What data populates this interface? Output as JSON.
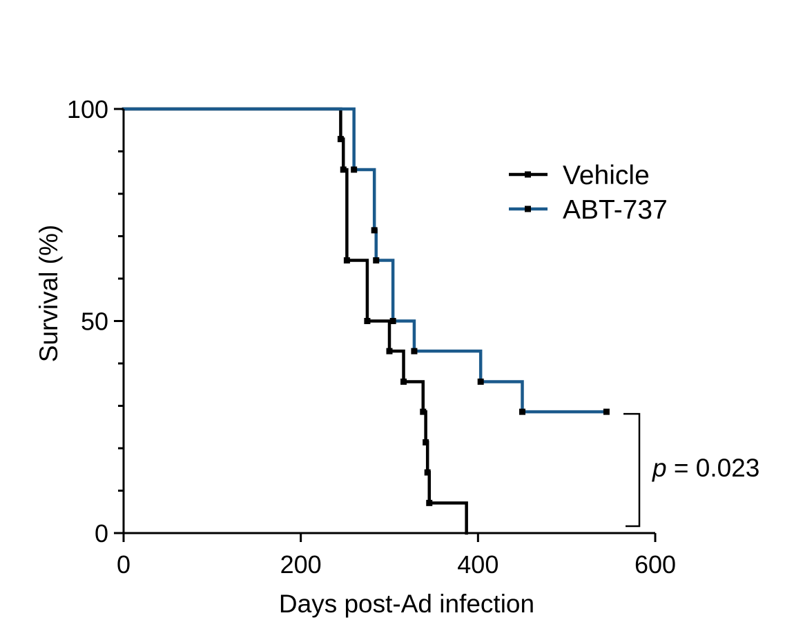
{
  "chart_data": {
    "type": "line",
    "subtype": "kaplan-meier step",
    "xlabel": "Days post-Ad infection",
    "ylabel": "Survival (%)",
    "xlim": [
      0,
      600
    ],
    "ylim": [
      0,
      100
    ],
    "xticks": [
      0,
      200,
      400,
      600
    ],
    "yticks": [
      0,
      50,
      100
    ],
    "grid": false,
    "legend_position": "top-right",
    "series": [
      {
        "name": "Vehicle",
        "color": "#000000",
        "x": [
          0,
          245,
          248,
          252,
          275,
          300,
          316,
          338,
          341,
          343,
          345,
          387
        ],
        "y": [
          100,
          92.9,
          85.7,
          64.3,
          50,
          42.9,
          35.7,
          28.6,
          21.4,
          14.3,
          7.1,
          0
        ],
        "censored_x": [],
        "censored_y": []
      },
      {
        "name": "ABT-737",
        "color": "#1b5a8c",
        "x": [
          0,
          260,
          283,
          285,
          304,
          328,
          403,
          450,
          545
        ],
        "y": [
          100,
          85.7,
          71.4,
          64.3,
          50,
          42.9,
          35.7,
          28.6,
          28.6
        ],
        "censored_x": [],
        "censored_y": []
      }
    ],
    "annotation": {
      "prefix": "p",
      "text": "= 0.023",
      "bracket_between": [
        "ABT-737",
        "Vehicle"
      ]
    }
  }
}
